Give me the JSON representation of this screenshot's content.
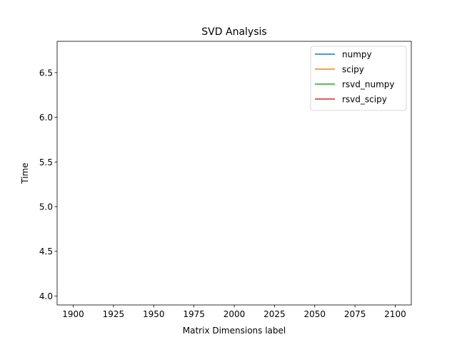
{
  "chart_data": {
    "type": "line",
    "title": "SVD Analysis",
    "xlabel": "Matrix Dimensions label",
    "ylabel": "Time",
    "xlim": [
      1890,
      2110
    ],
    "ylim": [
      3.9,
      6.85
    ],
    "xticks": [
      1900,
      1925,
      1950,
      1975,
      2000,
      2025,
      2050,
      2075,
      2100
    ],
    "xtick_labels": [
      "1900",
      "1925",
      "1950",
      "1975",
      "2000",
      "2025",
      "2050",
      "2075",
      "2100"
    ],
    "yticks": [
      4.0,
      4.5,
      5.0,
      5.5,
      6.0,
      6.5
    ],
    "ytick_labels": [
      "4.0",
      "4.5",
      "5.0",
      "5.5",
      "6.0",
      "6.5"
    ],
    "grid": false,
    "legend_position": "top-right",
    "series": [
      {
        "name": "numpy",
        "color": "#1f77b4",
        "x": [],
        "y": []
      },
      {
        "name": "scipy",
        "color": "#ff7f0e",
        "x": [],
        "y": []
      },
      {
        "name": "rsvd_numpy",
        "color": "#2ca02c",
        "x": [],
        "y": []
      },
      {
        "name": "rsvd_scipy",
        "color": "#d62728",
        "x": [],
        "y": []
      }
    ]
  }
}
